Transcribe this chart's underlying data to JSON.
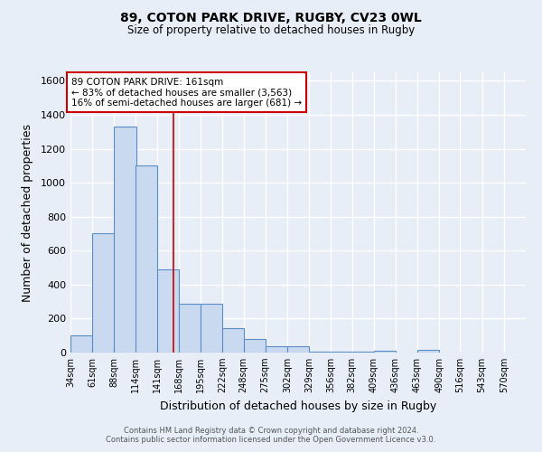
{
  "title1": "89, COTON PARK DRIVE, RUGBY, CV23 0WL",
  "title2": "Size of property relative to detached houses in Rugby",
  "xlabel": "Distribution of detached houses by size in Rugby",
  "ylabel": "Number of detached properties",
  "bar_labels": [
    "34sqm",
    "61sqm",
    "88sqm",
    "114sqm",
    "141sqm",
    "168sqm",
    "195sqm",
    "222sqm",
    "248sqm",
    "275sqm",
    "302sqm",
    "329sqm",
    "356sqm",
    "382sqm",
    "409sqm",
    "436sqm",
    "463sqm",
    "490sqm",
    "516sqm",
    "543sqm",
    "570sqm"
  ],
  "bar_values": [
    103,
    700,
    1330,
    1100,
    490,
    285,
    285,
    143,
    80,
    35,
    35,
    5,
    5,
    5,
    10,
    0,
    15,
    0,
    0,
    0,
    0
  ],
  "bar_color": "#c8d9f0",
  "bar_edge_color": "#5b8ec4",
  "property_line_x": 161,
  "bin_edges": [
    34,
    61,
    88,
    114,
    141,
    168,
    195,
    222,
    248,
    275,
    302,
    329,
    356,
    382,
    409,
    436,
    463,
    490,
    516,
    543,
    570
  ],
  "bin_width": 27,
  "annotation_text": "89 COTON PARK DRIVE: 161sqm\n← 83% of detached houses are smaller (3,563)\n16% of semi-detached houses are larger (681) →",
  "ylim": [
    0,
    1650
  ],
  "yticks": [
    0,
    200,
    400,
    600,
    800,
    1000,
    1200,
    1400,
    1600
  ],
  "footer1": "Contains HM Land Registry data © Crown copyright and database right 2024.",
  "footer2": "Contains public sector information licensed under the Open Government Licence v3.0.",
  "bg_color": "#e8eef8",
  "plot_bg_color": "#e8eef8",
  "grid_color": "#ffffff",
  "annotation_box_color": "#ffffff",
  "annotation_box_edge": "#cc0000",
  "red_line_color": "#cc0000",
  "title1_fontsize": 10,
  "title2_fontsize": 8.5
}
